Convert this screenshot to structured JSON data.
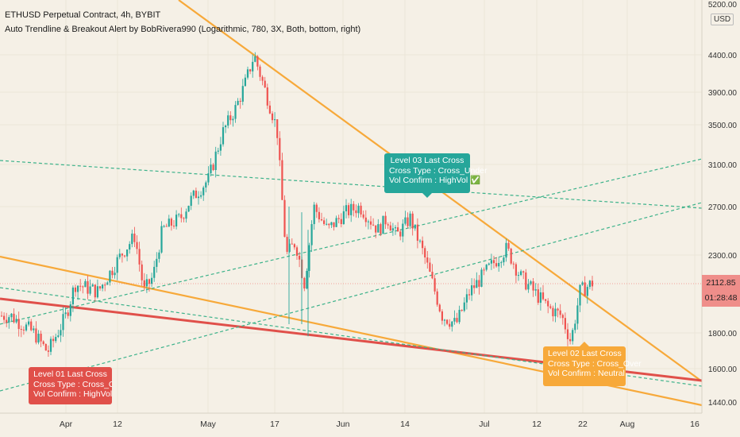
{
  "header": {
    "symbol_line": "ETHUSD Perpetual Contract, 4h, BYBIT",
    "indicator_line": "Auto Trendline & Breakout Alert by BobRivera990 (Logarithmic, 780, 3X, Both, bottom, right)"
  },
  "price_axis": {
    "currency": "USD",
    "ticks": [
      "5200.00",
      "4400.00",
      "3900.00",
      "3500.00",
      "3100.00",
      "2700.00",
      "2300.00",
      "1800.00",
      "1600.00",
      "1440.00"
    ],
    "last_price": "2112.85",
    "countdown": "01:28:48"
  },
  "time_axis": {
    "ticks": [
      "Apr",
      "12",
      "May",
      "17",
      "Jun",
      "14",
      "Jul",
      "12",
      "22",
      "Aug",
      "16"
    ]
  },
  "labels": [
    {
      "lines": [
        "Level 01 Last Cross",
        "Cross Type : Cross_Over",
        "Vol Confirm : HighVol ✅"
      ],
      "color": "#e0504a"
    },
    {
      "lines": [
        "Level 03 Last Cross",
        "Cross Type : Cross_Under",
        "Vol Confirm : HighVol ✅"
      ],
      "color": "#26a69a"
    },
    {
      "lines": [
        "Level 02 Last Cross",
        "Cross Type : Cross_Over",
        "Vol Confirm : Neutral"
      ],
      "color": "#f7a93a"
    }
  ],
  "colors": {
    "up": "#26a69a",
    "down": "#ef5350",
    "trend_orange": "#f7a93a",
    "trend_red": "#e0504a",
    "dashed": "#3cb28a",
    "price_tag": "#ef8e8a"
  },
  "chart_data": {
    "type": "candlestick",
    "symbol": "ETHUSD",
    "timeframe": "4h",
    "scale": "log",
    "ylim": [
      1400,
      5200
    ],
    "price_path": [
      [
        "Mar 20",
        1900
      ],
      [
        "Mar 25",
        1800
      ],
      [
        "Mar 28",
        1690
      ],
      [
        "Apr 1",
        1900
      ],
      [
        "Apr 3",
        2100
      ],
      [
        "Apr 8",
        2050
      ],
      [
        "Apr 13",
        2300
      ],
      [
        "Apr 16",
        2450
      ],
      [
        "Apr 18",
        2050
      ],
      [
        "Apr 20",
        2150
      ],
      [
        "Apr 22",
        2500
      ],
      [
        "Apr 26",
        2600
      ],
      [
        "Apr 28",
        2750
      ],
      [
        "May 2",
        2950
      ],
      [
        "May 5",
        3400
      ],
      [
        "May 8",
        3700
      ],
      [
        "May 10",
        4000
      ],
      [
        "May 12",
        4400
      ],
      [
        "May 14",
        4000
      ],
      [
        "May 17",
        3450
      ],
      [
        "May 19",
        2300
      ],
      [
        "May 21",
        2400
      ],
      [
        "May 23",
        2100
      ],
      [
        "May 25",
        2700
      ],
      [
        "May 28",
        2500
      ],
      [
        "Jun 1",
        2650
      ],
      [
        "Jun 4",
        2700
      ],
      [
        "Jun 8",
        2500
      ],
      [
        "Jun 10",
        2600
      ],
      [
        "Jun 12",
        2450
      ],
      [
        "Jun 15",
        2600
      ],
      [
        "Jun 18",
        2300
      ],
      [
        "Jun 22",
        1900
      ],
      [
        "Jun 25",
        1850
      ],
      [
        "Jun 28",
        2050
      ],
      [
        "Jul 2",
        2200
      ],
      [
        "Jul 6",
        2350
      ],
      [
        "Jul 9",
        2150
      ],
      [
        "Jul 12",
        2050
      ],
      [
        "Jul 15",
        1950
      ],
      [
        "Jul 18",
        1900
      ],
      [
        "Jul 20",
        1750
      ],
      [
        "Jul 22",
        2050
      ],
      [
        "Jul 25",
        2113
      ]
    ],
    "trendlines": [
      {
        "color": "orange",
        "style": "solid"
      },
      {
        "color": "orange",
        "style": "solid"
      },
      {
        "color": "red",
        "style": "solid"
      },
      {
        "color": "green",
        "style": "dashed"
      },
      {
        "color": "green",
        "style": "dashed"
      },
      {
        "color": "green",
        "style": "dashed"
      },
      {
        "color": "green",
        "style": "dashed"
      }
    ],
    "last_price": 2112.85
  }
}
